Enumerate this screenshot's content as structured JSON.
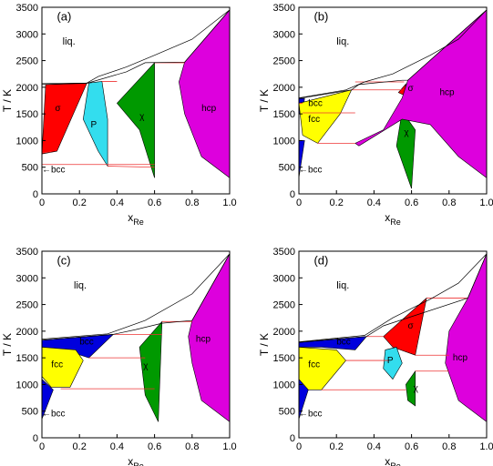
{
  "colors": {
    "alpha": "#ff0000",
    "sigma": "#ff0000",
    "P": "#33ddee",
    "chi": "#009900",
    "hcp": "#dd00dd",
    "bcc": "#0000dd",
    "fcc": "#ffff00",
    "tieline": "#ee3333",
    "outline": "#000000"
  },
  "chart_data": [
    {
      "type": "area",
      "panel": "(a)",
      "xlabel_main": "x",
      "xlabel_sub": "Re",
      "ylabel": "T / K",
      "xlim": [
        0,
        1.0
      ],
      "ylim": [
        0,
        3500
      ],
      "xticks": [
        "0",
        "0.2",
        "0.4",
        "0.6",
        "0.8",
        "1.0"
      ],
      "yticks": [
        "0",
        "500",
        "1000",
        "1500",
        "2000",
        "2500",
        "3000",
        "3500"
      ],
      "labels": {
        "liq": "liq.",
        "hcp": "hcp",
        "chi": "χ",
        "sigma": "σ",
        "P": "P",
        "bcc": "←bcc"
      },
      "liquidus": [
        [
          0.0,
          2070
        ],
        [
          0.24,
          2080
        ],
        [
          0.3,
          2200
        ],
        [
          0.45,
          2380
        ],
        [
          0.6,
          2600
        ],
        [
          0.8,
          2900
        ],
        [
          1.0,
          3450
        ]
      ],
      "solidus": [
        [
          0.0,
          2050
        ],
        [
          0.24,
          2075
        ],
        [
          0.45,
          2290
        ],
        [
          0.55,
          2460
        ],
        [
          0.76,
          2470
        ],
        [
          1.0,
          3450
        ]
      ],
      "phases": [
        {
          "key": "sigma",
          "poly": [
            [
              0.0,
              750
            ],
            [
              0.02,
              2050
            ],
            [
              0.24,
              2080
            ],
            [
              0.08,
              800
            ]
          ]
        },
        {
          "key": "P",
          "poly": [
            [
              0.25,
              2080
            ],
            [
              0.32,
              2110
            ],
            [
              0.35,
              1400
            ],
            [
              0.35,
              520
            ],
            [
              0.3,
              800
            ],
            [
              0.22,
              1400
            ]
          ]
        },
        {
          "key": "chi",
          "poly": [
            [
              0.4,
              1700
            ],
            [
              0.6,
              2460
            ],
            [
              0.6,
              300
            ],
            [
              0.52,
              1200
            ]
          ]
        },
        {
          "key": "hcp",
          "poly": [
            [
              0.76,
              2470
            ],
            [
              1.0,
              3450
            ],
            [
              1.0,
              300
            ],
            [
              0.85,
              700
            ],
            [
              0.76,
              1500
            ],
            [
              0.73,
              2100
            ]
          ]
        }
      ],
      "tielines": [
        [
          [
            0.0,
            770
          ],
          [
            0.05,
            790
          ]
        ],
        [
          [
            0.24,
            2080
          ],
          [
            0.25,
            2080
          ]
        ],
        [
          [
            0.32,
            2110
          ],
          [
            0.4,
            2110
          ]
        ],
        [
          [
            0.35,
            520
          ],
          [
            0.6,
            500
          ]
        ],
        [
          [
            0.6,
            2460
          ],
          [
            0.76,
            2460
          ]
        ],
        [
          [
            0.0,
            550
          ],
          [
            0.6,
            550
          ]
        ]
      ]
    },
    {
      "type": "area",
      "panel": "(b)",
      "xlabel_main": "x",
      "xlabel_sub": "Re",
      "ylabel": "T / K",
      "xlim": [
        0,
        1.0
      ],
      "ylim": [
        0,
        3500
      ],
      "xticks": [
        "0",
        "0.2",
        "0.4",
        "0.6",
        "0.8",
        "1.0"
      ],
      "yticks": [
        "0",
        "500",
        "1000",
        "1500",
        "2000",
        "2500",
        "3000",
        "3500"
      ],
      "labels": {
        "liq": "liq.",
        "hcp": "hcp",
        "chi": "χ",
        "sigma": "σ",
        "bcc_top": "bcc",
        "fcc": "fcc",
        "bcc": "←bcc"
      },
      "liquidus": [
        [
          0.0,
          1800
        ],
        [
          0.25,
          1950
        ],
        [
          0.35,
          2100
        ],
        [
          0.5,
          2250
        ],
        [
          0.7,
          2600
        ],
        [
          0.85,
          2900
        ],
        [
          1.0,
          3450
        ]
      ],
      "solidus": [
        [
          0.0,
          1790
        ],
        [
          0.28,
          1950
        ],
        [
          0.32,
          2050
        ],
        [
          0.55,
          2130
        ],
        [
          0.58,
          2130
        ],
        [
          1.0,
          3450
        ]
      ],
      "phases": [
        {
          "key": "bcc",
          "poly": [
            [
              0.0,
              1790
            ],
            [
              0.03,
              1790
            ],
            [
              0.02,
              1550
            ],
            [
              0.0,
              1500
            ]
          ]
        },
        {
          "key": "fcc",
          "poly": [
            [
              0.0,
              1700
            ],
            [
              0.28,
              1950
            ],
            [
              0.22,
              1500
            ],
            [
              0.1,
              950
            ],
            [
              0.02,
              1100
            ]
          ]
        },
        {
          "key": "bcc",
          "poly": [
            [
              0.0,
              1000
            ],
            [
              0.03,
              1000
            ],
            [
              0.0,
              300
            ]
          ]
        },
        {
          "key": "sigma",
          "poly": [
            [
              0.53,
              1900
            ],
            [
              0.57,
              2060
            ],
            [
              0.56,
              1850
            ]
          ]
        },
        {
          "key": "chi",
          "poly": [
            [
              0.55,
              1550
            ],
            [
              0.62,
              1200
            ],
            [
              0.6,
              100
            ],
            [
              0.52,
              900
            ]
          ]
        },
        {
          "key": "hcp",
          "poly": [
            [
              0.58,
              2130
            ],
            [
              1.0,
              3450
            ],
            [
              1.0,
              300
            ],
            [
              0.85,
              700
            ],
            [
              0.7,
              1300
            ],
            [
              0.55,
              1400
            ],
            [
              0.32,
              900
            ],
            [
              0.3,
              950
            ],
            [
              0.45,
              1200
            ],
            [
              0.55,
              1800
            ]
          ]
        }
      ],
      "tielines": [
        [
          [
            0.1,
            950
          ],
          [
            0.3,
            950
          ]
        ],
        [
          [
            0.28,
            1950
          ],
          [
            0.55,
            1950
          ]
        ],
        [
          [
            0.3,
            2100
          ],
          [
            0.56,
            2100
          ]
        ],
        [
          [
            0.0,
            1700
          ],
          [
            0.02,
            1700
          ]
        ],
        [
          [
            0.02,
            1520
          ],
          [
            0.3,
            1520
          ]
        ]
      ]
    },
    {
      "type": "area",
      "panel": "(c)",
      "xlabel_main": "x",
      "xlabel_sub": "Re",
      "ylabel": "T / K",
      "xlim": [
        0,
        1.0
      ],
      "ylim": [
        0,
        3500
      ],
      "xticks": [
        "0",
        "0.2",
        "0.4",
        "0.6",
        "0.8",
        "1.0"
      ],
      "yticks": [
        "0",
        "500",
        "1000",
        "1500",
        "2000",
        "2500",
        "3000",
        "3500"
      ],
      "labels": {
        "liq": "liq.",
        "hcp": "hcp",
        "chi": "χ",
        "bcc_top": "bcc",
        "fcc": "fcc",
        "bcc": "←bcc"
      },
      "liquidus": [
        [
          0.0,
          1850
        ],
        [
          0.35,
          1950
        ],
        [
          0.55,
          2200
        ],
        [
          0.8,
          2700
        ],
        [
          1.0,
          3450
        ]
      ],
      "solidus": [
        [
          0.0,
          1830
        ],
        [
          0.38,
          1940
        ],
        [
          0.5,
          2030
        ],
        [
          0.64,
          2150
        ],
        [
          0.8,
          2200
        ],
        [
          1.0,
          3450
        ]
      ],
      "phases": [
        {
          "key": "bcc",
          "poly": [
            [
              0.0,
              1830
            ],
            [
              0.38,
              1940
            ],
            [
              0.25,
              1500
            ],
            [
              0.12,
              1650
            ],
            [
              0.0,
              1700
            ]
          ]
        },
        {
          "key": "fcc",
          "poly": [
            [
              0.0,
              1700
            ],
            [
              0.18,
              1650
            ],
            [
              0.22,
              1450
            ],
            [
              0.15,
              950
            ],
            [
              0.05,
              950
            ],
            [
              0.0,
              1150
            ]
          ]
        },
        {
          "key": "bcc",
          "poly": [
            [
              0.0,
              1100
            ],
            [
              0.06,
              900
            ],
            [
              0.0,
              350
            ]
          ]
        },
        {
          "key": "chi",
          "poly": [
            [
              0.52,
              1700
            ],
            [
              0.64,
              2180
            ],
            [
              0.62,
              300
            ],
            [
              0.55,
              800
            ]
          ]
        },
        {
          "key": "hcp",
          "poly": [
            [
              0.8,
              2200
            ],
            [
              1.0,
              3450
            ],
            [
              1.0,
              300
            ],
            [
              0.85,
              700
            ],
            [
              0.8,
              1400
            ],
            [
              0.78,
              1900
            ]
          ]
        }
      ],
      "tielines": [
        [
          [
            0.25,
            1500
          ],
          [
            0.55,
            1500
          ]
        ],
        [
          [
            0.38,
            1940
          ],
          [
            0.64,
            1940
          ]
        ],
        [
          [
            0.1,
            920
          ],
          [
            0.6,
            920
          ]
        ],
        [
          [
            0.64,
            2180
          ],
          [
            0.8,
            2180
          ]
        ]
      ]
    },
    {
      "type": "area",
      "panel": "(d)",
      "xlabel_main": "x",
      "xlabel_sub": "Re",
      "ylabel": "T / K",
      "xlim": [
        0,
        1.0
      ],
      "ylim": [
        0,
        3500
      ],
      "xticks": [
        "0",
        "0.2",
        "0.4",
        "0.6",
        "0.8",
        "1.0"
      ],
      "yticks": [
        "0",
        "500",
        "1000",
        "1500",
        "2000",
        "2500",
        "3000",
        "3500"
      ],
      "labels": {
        "liq": "liq.",
        "hcp": "hcp",
        "chi": "χ",
        "sigma": "σ",
        "P": "P",
        "bcc_top": "bcc",
        "fcc": "fcc",
        "bcc": "←bcc"
      },
      "liquidus": [
        [
          0.0,
          1800
        ],
        [
          0.35,
          1920
        ],
        [
          0.5,
          2250
        ],
        [
          0.7,
          2600
        ],
        [
          0.85,
          2900
        ],
        [
          1.0,
          3450
        ]
      ],
      "solidus": [
        [
          0.0,
          1790
        ],
        [
          0.36,
          1900
        ],
        [
          0.45,
          2100
        ],
        [
          0.9,
          2620
        ],
        [
          1.0,
          3450
        ]
      ],
      "phases": [
        {
          "key": "bcc",
          "poly": [
            [
              0.0,
              1790
            ],
            [
              0.36,
              1900
            ],
            [
              0.3,
              1650
            ],
            [
              0.12,
              1700
            ],
            [
              0.0,
              1700
            ]
          ]
        },
        {
          "key": "fcc",
          "poly": [
            [
              0.0,
              1700
            ],
            [
              0.2,
              1650
            ],
            [
              0.25,
              1450
            ],
            [
              0.12,
              900
            ],
            [
              0.02,
              900
            ],
            [
              0.0,
              1100
            ]
          ]
        },
        {
          "key": "bcc",
          "poly": [
            [
              0.0,
              1100
            ],
            [
              0.05,
              900
            ],
            [
              0.0,
              350
            ]
          ]
        },
        {
          "key": "sigma",
          "poly": [
            [
              0.45,
              1900
            ],
            [
              0.68,
              2620
            ],
            [
              0.62,
              1550
            ],
            [
              0.5,
              1700
            ]
          ]
        },
        {
          "key": "P",
          "poly": [
            [
              0.46,
              1650
            ],
            [
              0.52,
              1700
            ],
            [
              0.55,
              1400
            ],
            [
              0.5,
              1100
            ],
            [
              0.45,
              1300
            ]
          ]
        },
        {
          "key": "chi",
          "poly": [
            [
              0.57,
              1000
            ],
            [
              0.62,
              1250
            ],
            [
              0.62,
              600
            ],
            [
              0.58,
              700
            ]
          ]
        },
        {
          "key": "hcp",
          "poly": [
            [
              0.9,
              2620
            ],
            [
              1.0,
              3450
            ],
            [
              1.0,
              300
            ],
            [
              0.85,
              700
            ],
            [
              0.78,
              1400
            ],
            [
              0.8,
              2000
            ]
          ]
        }
      ],
      "tielines": [
        [
          [
            0.68,
            2620
          ],
          [
            0.9,
            2620
          ]
        ],
        [
          [
            0.62,
            1550
          ],
          [
            0.8,
            1550
          ]
        ],
        [
          [
            0.25,
            1450
          ],
          [
            0.48,
            1450
          ]
        ],
        [
          [
            0.36,
            1900
          ],
          [
            0.45,
            1900
          ]
        ],
        [
          [
            0.62,
            1250
          ],
          [
            0.8,
            1250
          ]
        ],
        [
          [
            0.12,
            900
          ],
          [
            0.57,
            900
          ]
        ]
      ]
    }
  ]
}
